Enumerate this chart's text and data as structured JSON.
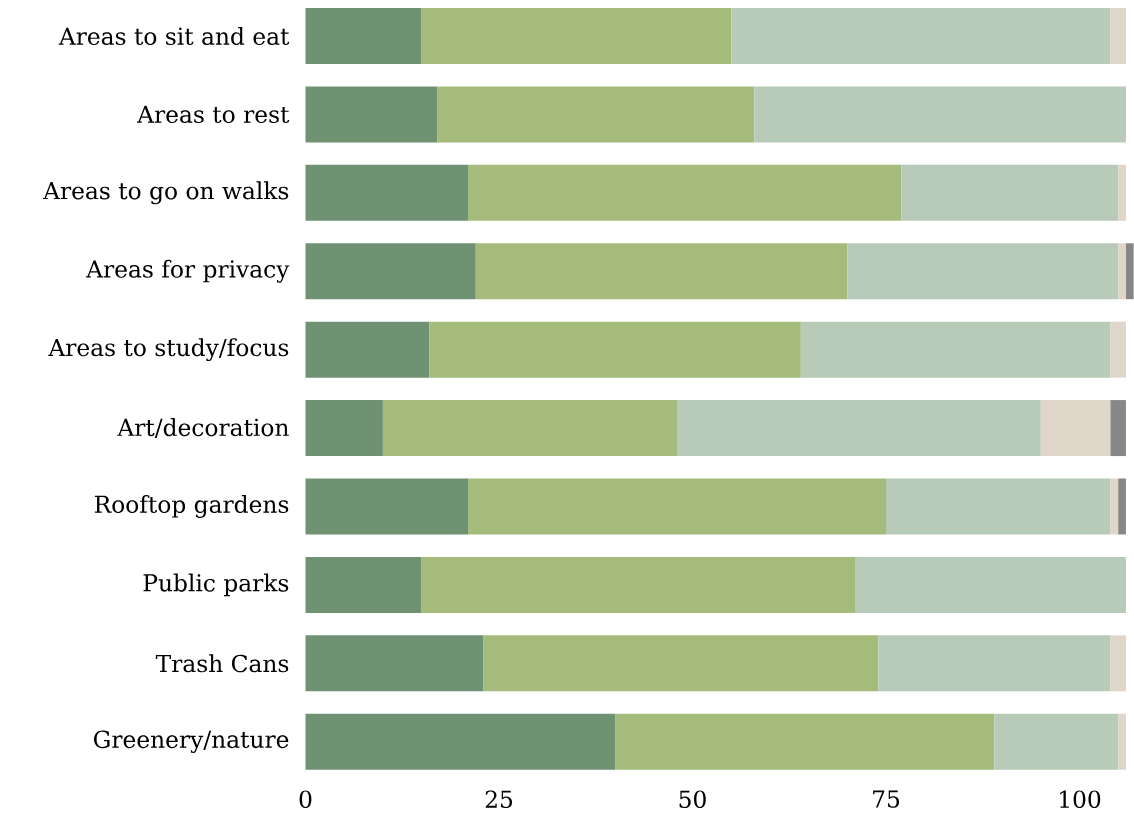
{
  "chart_data": {
    "type": "bar",
    "orientation": "horizontal",
    "stacked": true,
    "categories": [
      "Areas to sit and eat",
      "Areas to rest",
      "Areas to go on walks",
      "Areas for privacy",
      "Areas to study/focus",
      "Art/decoration",
      "Rooftop gardens",
      "Public parks",
      "Trash Cans",
      "Greenery/nature"
    ],
    "series": [
      {
        "color": "#6f9273",
        "values": [
          15,
          17,
          21,
          22,
          16,
          10,
          21,
          15,
          23,
          40
        ]
      },
      {
        "color": "#a4bb7c",
        "values": [
          40,
          41,
          56,
          48,
          48,
          38,
          54,
          56,
          51,
          49
        ]
      },
      {
        "color": "#b7cbb8",
        "values": [
          49,
          48,
          28,
          35,
          40,
          47,
          29,
          35,
          30,
          16
        ]
      },
      {
        "color": "#dfd6c9",
        "values": [
          2,
          null,
          1,
          1,
          2,
          9,
          1,
          null,
          2,
          1
        ]
      },
      {
        "color": "#878787",
        "values": [
          null,
          null,
          null,
          1,
          null,
          2,
          1,
          null,
          null,
          null
        ]
      }
    ],
    "xlim": [
      0,
      107
    ],
    "xticks": [
      0,
      25,
      50,
      75,
      100
    ]
  }
}
